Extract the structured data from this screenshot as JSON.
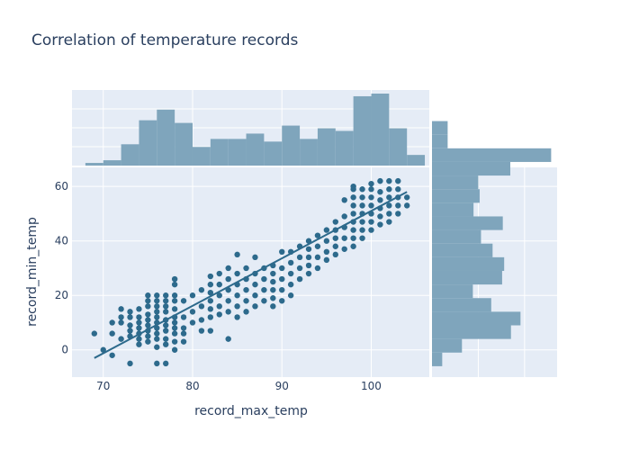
{
  "chart_data": {
    "type": "scatter",
    "title": "Correlation of temperature records",
    "xlabel": "record_max_temp",
    "ylabel": "record_min_temp",
    "xlim": [
      66.5,
      106.5
    ],
    "ylim": [
      -10,
      67
    ],
    "x_ticks": [
      70,
      80,
      90,
      100
    ],
    "y_ticks": [
      0,
      20,
      40,
      60
    ],
    "grid": true,
    "colors": {
      "marker": "#2d6a8c",
      "histogram": "#7fa5bc",
      "plot_bg": "#e5ecf6",
      "text": "#2a3f5f"
    },
    "trendline": {
      "x": [
        69,
        104
      ],
      "y": [
        -3,
        58
      ]
    },
    "series": [
      {
        "points": [
          [
            69,
            6
          ],
          [
            70,
            0
          ],
          [
            71,
            -2
          ],
          [
            71,
            6
          ],
          [
            71,
            10
          ],
          [
            72,
            4
          ],
          [
            72,
            10
          ],
          [
            72,
            12
          ],
          [
            72,
            15
          ],
          [
            73,
            -5
          ],
          [
            73,
            5
          ],
          [
            73,
            7
          ],
          [
            73,
            9
          ],
          [
            73,
            12
          ],
          [
            73,
            14
          ],
          [
            74,
            2
          ],
          [
            74,
            4
          ],
          [
            74,
            6
          ],
          [
            74,
            8
          ],
          [
            74,
            10
          ],
          [
            74,
            12
          ],
          [
            74,
            15
          ],
          [
            75,
            3
          ],
          [
            75,
            5
          ],
          [
            75,
            7
          ],
          [
            75,
            9
          ],
          [
            75,
            11
          ],
          [
            75,
            13
          ],
          [
            75,
            16
          ],
          [
            75,
            18
          ],
          [
            75,
            20
          ],
          [
            76,
            -5
          ],
          [
            76,
            1
          ],
          [
            76,
            4
          ],
          [
            76,
            6
          ],
          [
            76,
            8
          ],
          [
            76,
            10
          ],
          [
            76,
            12
          ],
          [
            76,
            14
          ],
          [
            76,
            16
          ],
          [
            76,
            18
          ],
          [
            76,
            20
          ],
          [
            77,
            -5
          ],
          [
            77,
            2
          ],
          [
            77,
            4
          ],
          [
            77,
            7
          ],
          [
            77,
            9
          ],
          [
            77,
            11
          ],
          [
            77,
            14
          ],
          [
            77,
            16
          ],
          [
            77,
            18
          ],
          [
            77,
            20
          ],
          [
            78,
            0
          ],
          [
            78,
            3
          ],
          [
            78,
            6
          ],
          [
            78,
            8
          ],
          [
            78,
            10
          ],
          [
            78,
            12
          ],
          [
            78,
            15
          ],
          [
            78,
            18
          ],
          [
            78,
            20
          ],
          [
            78,
            24
          ],
          [
            78,
            26
          ],
          [
            79,
            3
          ],
          [
            79,
            6
          ],
          [
            79,
            8
          ],
          [
            79,
            12
          ],
          [
            79,
            18
          ],
          [
            80,
            10
          ],
          [
            80,
            14
          ],
          [
            80,
            20
          ],
          [
            81,
            7
          ],
          [
            81,
            11
          ],
          [
            81,
            16
          ],
          [
            81,
            22
          ],
          [
            82,
            7
          ],
          [
            82,
            12
          ],
          [
            82,
            15
          ],
          [
            82,
            18
          ],
          [
            82,
            21
          ],
          [
            82,
            24
          ],
          [
            82,
            27
          ],
          [
            83,
            13
          ],
          [
            83,
            16
          ],
          [
            83,
            20
          ],
          [
            83,
            24
          ],
          [
            83,
            28
          ],
          [
            84,
            4
          ],
          [
            84,
            14
          ],
          [
            84,
            18
          ],
          [
            84,
            22
          ],
          [
            84,
            26
          ],
          [
            84,
            30
          ],
          [
            85,
            12
          ],
          [
            85,
            16
          ],
          [
            85,
            20
          ],
          [
            85,
            24
          ],
          [
            85,
            28
          ],
          [
            85,
            35
          ],
          [
            86,
            14
          ],
          [
            86,
            18
          ],
          [
            86,
            22
          ],
          [
            86,
            26
          ],
          [
            86,
            30
          ],
          [
            87,
            16
          ],
          [
            87,
            20
          ],
          [
            87,
            24
          ],
          [
            87,
            28
          ],
          [
            87,
            34
          ],
          [
            88,
            18
          ],
          [
            88,
            22
          ],
          [
            88,
            26
          ],
          [
            88,
            30
          ],
          [
            89,
            16
          ],
          [
            89,
            19
          ],
          [
            89,
            22
          ],
          [
            89,
            25
          ],
          [
            89,
            28
          ],
          [
            89,
            31
          ],
          [
            90,
            18
          ],
          [
            90,
            22
          ],
          [
            90,
            26
          ],
          [
            90,
            30
          ],
          [
            90,
            36
          ],
          [
            91,
            20
          ],
          [
            91,
            24
          ],
          [
            91,
            28
          ],
          [
            91,
            32
          ],
          [
            91,
            36
          ],
          [
            92,
            26
          ],
          [
            92,
            30
          ],
          [
            92,
            34
          ],
          [
            92,
            38
          ],
          [
            93,
            28
          ],
          [
            93,
            31
          ],
          [
            93,
            34
          ],
          [
            93,
            37
          ],
          [
            93,
            40
          ],
          [
            94,
            30
          ],
          [
            94,
            34
          ],
          [
            94,
            38
          ],
          [
            94,
            42
          ],
          [
            95,
            33
          ],
          [
            95,
            36
          ],
          [
            95,
            40
          ],
          [
            95,
            44
          ],
          [
            96,
            35
          ],
          [
            96,
            38
          ],
          [
            96,
            41
          ],
          [
            96,
            44
          ],
          [
            96,
            47
          ],
          [
            97,
            37
          ],
          [
            97,
            41
          ],
          [
            97,
            45
          ],
          [
            97,
            49
          ],
          [
            97,
            55
          ],
          [
            98,
            38
          ],
          [
            98,
            41
          ],
          [
            98,
            44
          ],
          [
            98,
            47
          ],
          [
            98,
            50
          ],
          [
            98,
            53
          ],
          [
            98,
            56
          ],
          [
            98,
            59
          ],
          [
            98,
            60
          ],
          [
            99,
            41
          ],
          [
            99,
            44
          ],
          [
            99,
            47
          ],
          [
            99,
            50
          ],
          [
            99,
            53
          ],
          [
            99,
            56
          ],
          [
            99,
            59
          ],
          [
            100,
            44
          ],
          [
            100,
            47
          ],
          [
            100,
            50
          ],
          [
            100,
            53
          ],
          [
            100,
            56
          ],
          [
            100,
            59
          ],
          [
            100,
            61
          ],
          [
            101,
            46
          ],
          [
            101,
            49
          ],
          [
            101,
            52
          ],
          [
            101,
            55
          ],
          [
            101,
            58
          ],
          [
            101,
            62
          ],
          [
            102,
            47
          ],
          [
            102,
            50
          ],
          [
            102,
            53
          ],
          [
            102,
            56
          ],
          [
            102,
            59
          ],
          [
            102,
            62
          ],
          [
            103,
            50
          ],
          [
            103,
            53
          ],
          [
            103,
            56
          ],
          [
            103,
            59
          ],
          [
            103,
            62
          ],
          [
            104,
            53
          ],
          [
            104,
            56
          ]
        ]
      }
    ],
    "x_histogram": {
      "bin_start": 68,
      "bin_width": 2,
      "counts": [
        1,
        2,
        8,
        17,
        21,
        16,
        7,
        10,
        10,
        12,
        9,
        15,
        10,
        14,
        13,
        26,
        27,
        14,
        4
      ]
    },
    "y_histogram": {
      "bin_start": -6,
      "bin_width": 5,
      "counts": [
        1.5,
        4.4,
        11.6,
        13,
        8.7,
        6,
        10.3,
        10.6,
        8.9,
        7.2,
        10.4,
        6.1,
        7,
        6.8,
        11.5,
        17.5,
        2.3,
        2.3
      ]
    }
  }
}
